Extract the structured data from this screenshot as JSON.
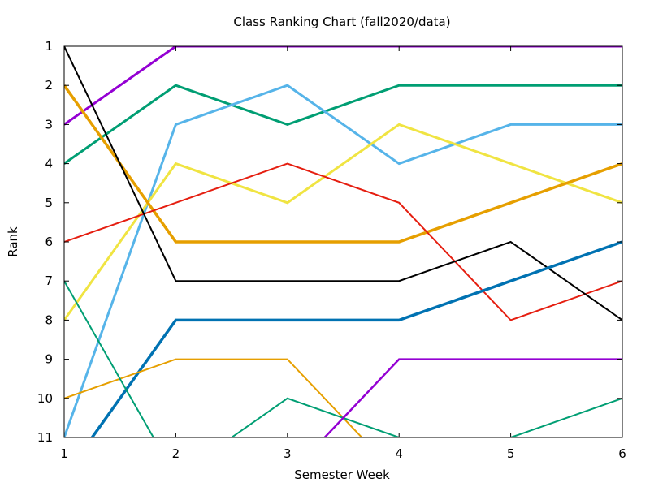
{
  "chart_data": {
    "type": "line",
    "title": "Class Ranking Chart (fall2020/data)",
    "xlabel": "Semester Week",
    "ylabel": "Rank",
    "xlim": [
      1,
      6
    ],
    "ylim": [
      11,
      1
    ],
    "y_inverted": true,
    "xticks": [
      "1",
      "2",
      "3",
      "4",
      "5",
      "6"
    ],
    "yticks": [
      "1",
      "2",
      "3",
      "4",
      "5",
      "6",
      "7",
      "8",
      "9",
      "10",
      "11"
    ],
    "grid": false,
    "legend": "none",
    "series": [
      {
        "color": "#9400d3",
        "width": 3,
        "x": [
          1,
          2,
          3,
          4,
          5,
          6
        ],
        "y": [
          3,
          1,
          1,
          1,
          1,
          1
        ]
      },
      {
        "color": "#009e73",
        "width": 3,
        "x": [
          1,
          2,
          3,
          4,
          5,
          6
        ],
        "y": [
          4,
          2,
          3,
          2,
          2,
          2
        ]
      },
      {
        "color": "#56b4e9",
        "width": 3,
        "x": [
          1,
          2,
          3,
          4,
          5,
          6
        ],
        "y": [
          11,
          3,
          2,
          4,
          3,
          3
        ]
      },
      {
        "color": "#f0e442",
        "width": 3,
        "x": [
          1,
          2,
          3,
          4,
          5,
          6
        ],
        "y": [
          8,
          4,
          5,
          3,
          4,
          5
        ]
      },
      {
        "color": "#e69f00",
        "width": 3.5,
        "x": [
          1,
          2,
          3,
          4,
          5,
          6
        ],
        "y": [
          2,
          6,
          6,
          6,
          5,
          4
        ]
      },
      {
        "color": "#e51e10",
        "width": 2,
        "x": [
          1,
          2,
          3,
          4,
          5,
          6
        ],
        "y": [
          6,
          5,
          4,
          5,
          8,
          7
        ]
      },
      {
        "color": "#000000",
        "width": 2,
        "x": [
          1,
          2,
          3,
          4,
          5,
          6
        ],
        "y": [
          1,
          7,
          7,
          7,
          6,
          8
        ]
      },
      {
        "color": "#0072b2",
        "width": 3.5,
        "x": [
          1,
          2,
          3,
          4,
          5,
          6
        ],
        "y": [
          12,
          8,
          8,
          8,
          7,
          6
        ]
      },
      {
        "color": "#e69f00",
        "width": 2,
        "x": [
          1,
          2,
          3,
          4
        ],
        "y": [
          10,
          9,
          9,
          12
        ]
      },
      {
        "color": "#009e73",
        "width": 2,
        "x": [
          1,
          2,
          3,
          4,
          5,
          6
        ],
        "y": [
          7,
          12,
          10,
          11,
          11,
          10
        ]
      },
      {
        "color": "#9400d3",
        "width": 2.5,
        "x": [
          3,
          4,
          5,
          6
        ],
        "y": [
          12,
          9,
          9,
          9
        ]
      }
    ]
  }
}
